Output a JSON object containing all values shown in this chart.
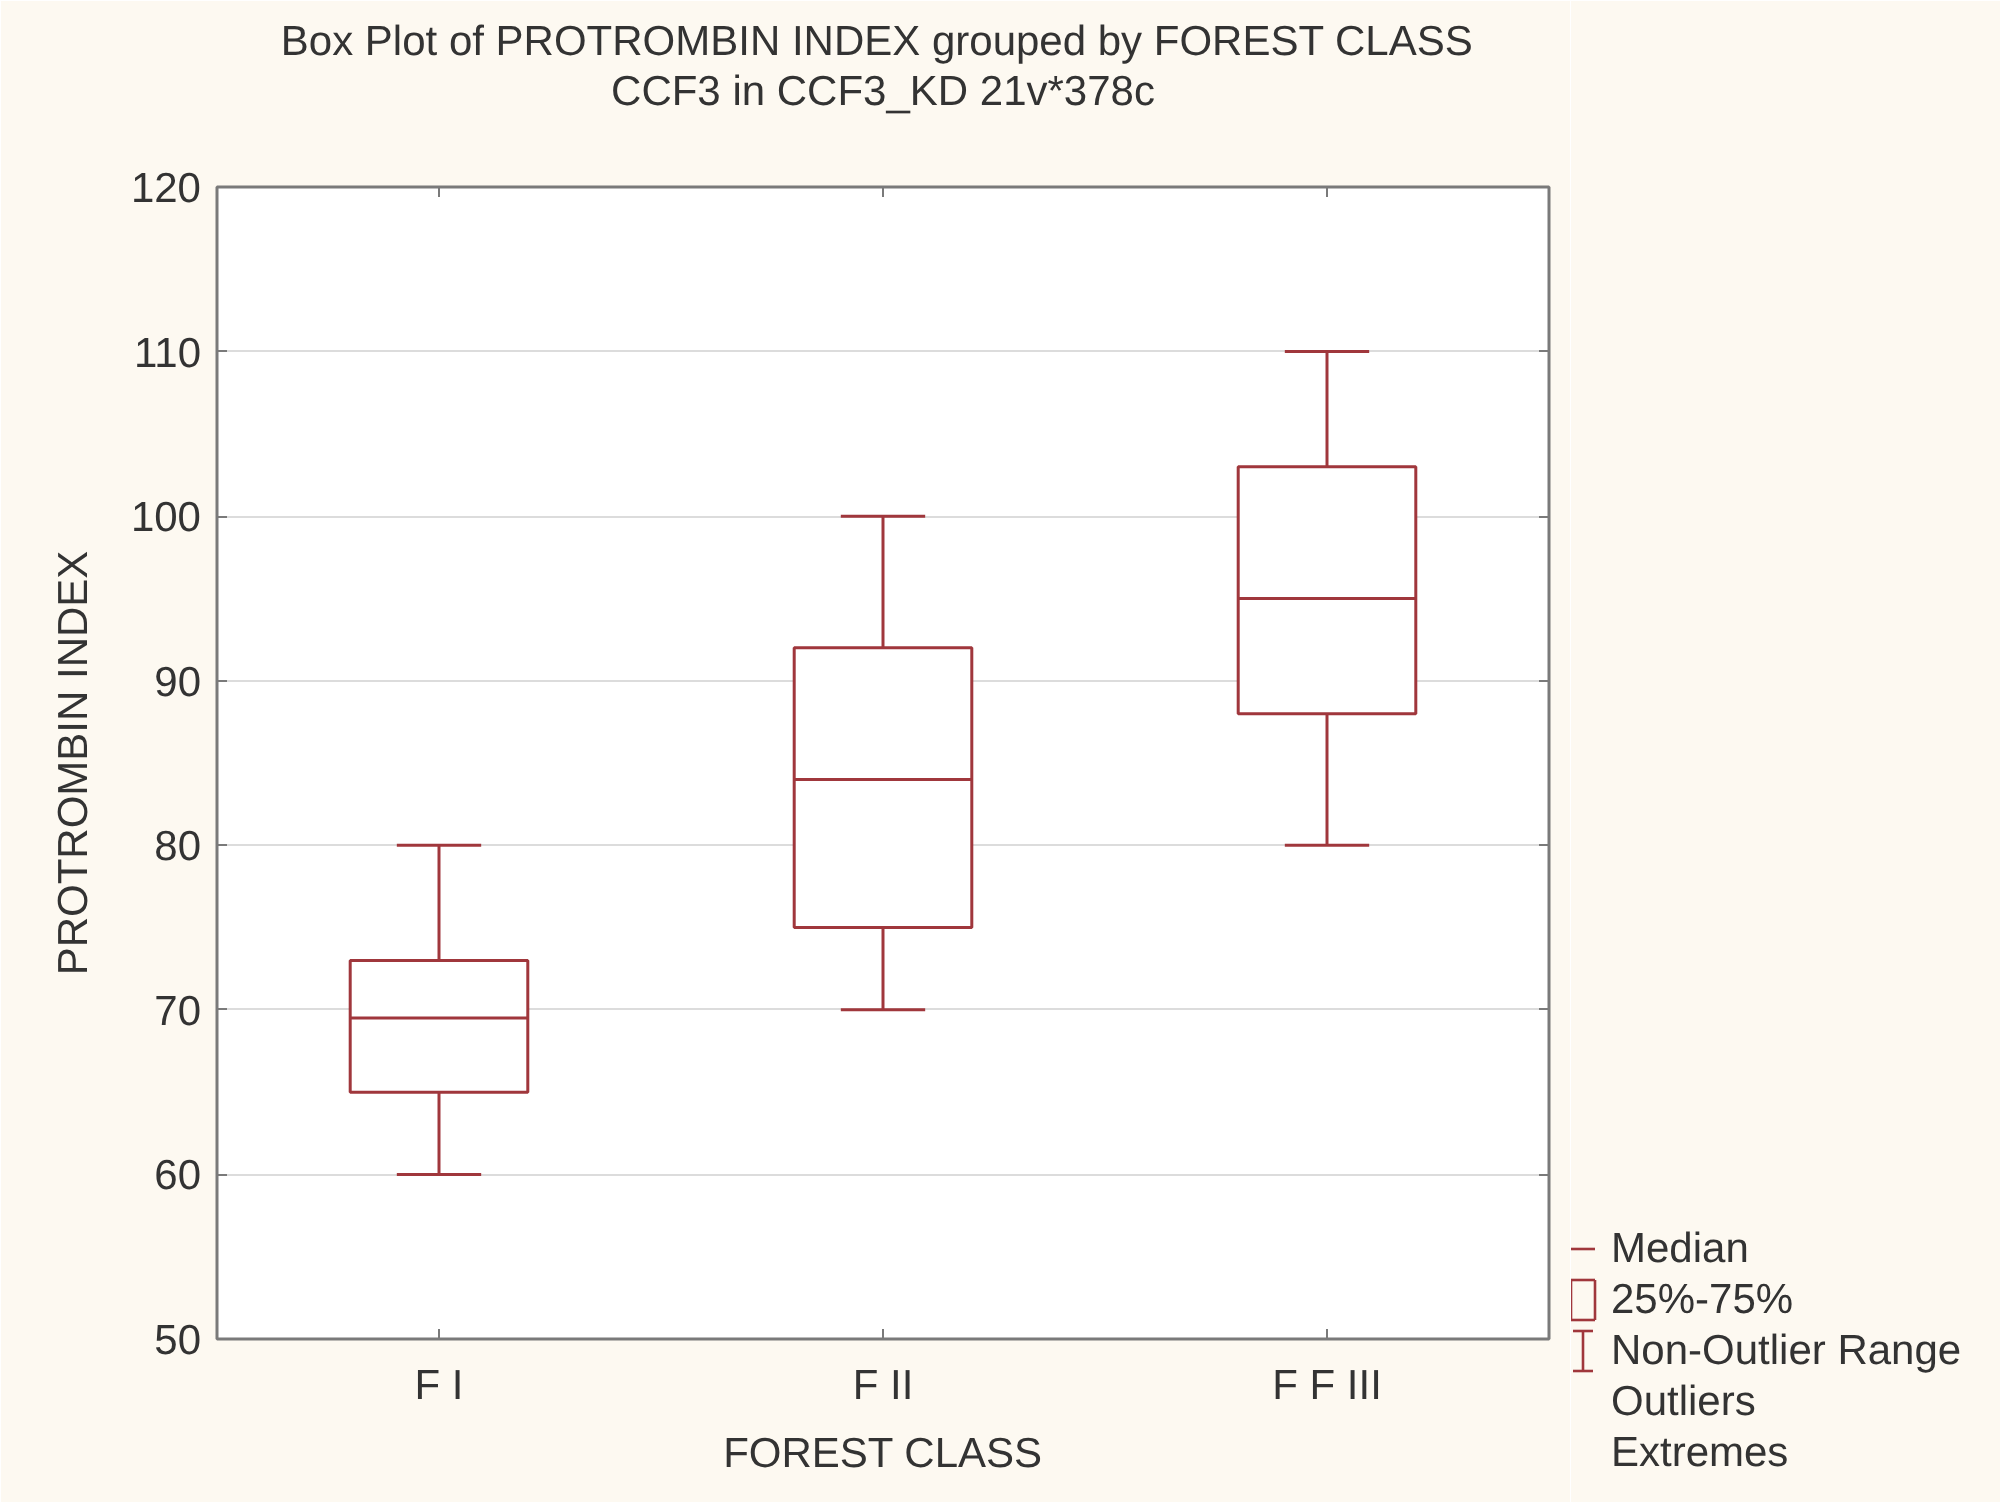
{
  "chart_data": {
    "type": "box",
    "title": "Box Plot of PROTROMBIN INDEX grouped by  FOREST CLASS",
    "subtitle": "CCF3 in CCF3_KD 21v*378c",
    "xlabel": "FOREST CLASS",
    "ylabel": "PROTROMBIN INDEX",
    "categories": [
      "F I",
      "F II",
      "F F III"
    ],
    "series": [
      {
        "color": "#a0373c",
        "boxes": [
          {
            "low": 60,
            "q1": 65,
            "median": 69.5,
            "q3": 73,
            "high": 80
          },
          {
            "low": 70,
            "q1": 75,
            "median": 84,
            "q3": 92,
            "high": 100
          },
          {
            "low": 80,
            "q1": 88,
            "median": 95,
            "q3": 103,
            "high": 110
          }
        ]
      }
    ],
    "ylim": [
      50,
      120
    ],
    "yticks": [
      50,
      60,
      70,
      80,
      90,
      100,
      110,
      120
    ],
    "grid": "y",
    "annotations": [
      "Median",
      "25%-75%",
      "Non-Outlier Range",
      "Outliers",
      "Extremes"
    ]
  }
}
